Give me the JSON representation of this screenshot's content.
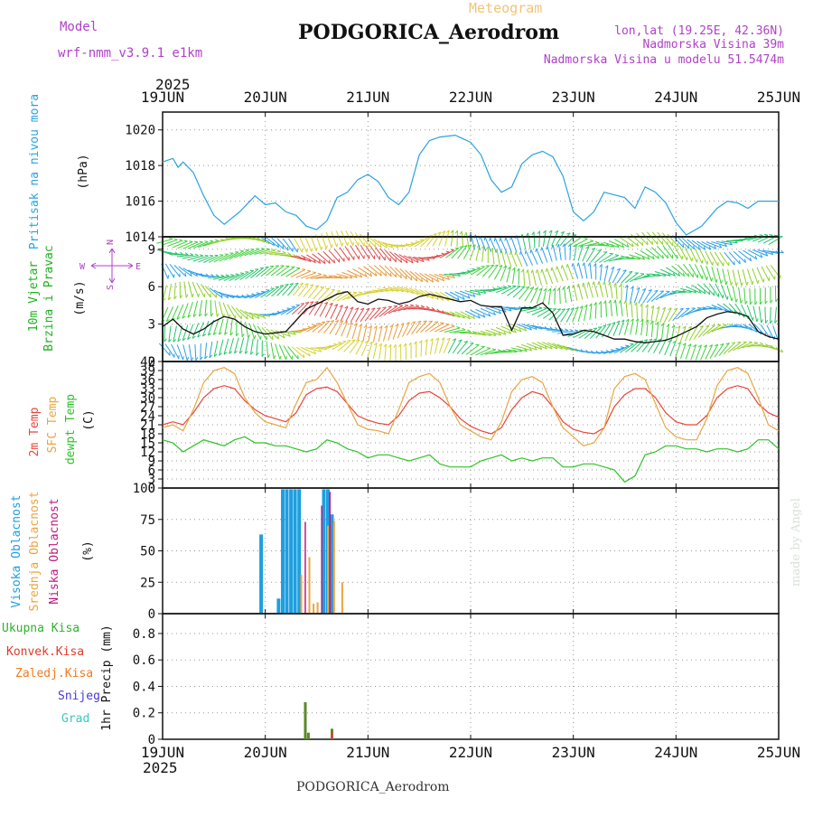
{
  "header": {
    "model_label": "Model",
    "model_name": "wrf-nmm_v3.9.1 e1km",
    "title": "PODGORICA_Aerodrom",
    "meteogram": "Meteogram",
    "coords": "lon,lat (19.25E, 42.36N)",
    "altitude": "Nadmorska Visina 39m",
    "model_altitude": "Nadmorska Visina u modelu 51.5474m",
    "footer_title": "PODGORICA_Aerodrom",
    "watermark": "made by Angel"
  },
  "colors": {
    "pressure": "#29a3e0",
    "temp2m": "#e8463a",
    "sfc_temp": "#e8a640",
    "dewpoint": "#2ec227",
    "high_cloud": "#1e9fe0",
    "mid_cloud": "#e8a640",
    "low_cloud": "#c01880",
    "total_precip": "#2db22a",
    "convective_precip": "#e03a2a",
    "freezing_precip": "#f07a20",
    "snow": "#4a3ad8",
    "hail": "#3ac8c0",
    "wind_label": "#22b022",
    "compass": "#b040c8"
  },
  "x_axis": {
    "year_top": "2025",
    "year_bottom": "2025",
    "dates": [
      "19JUN",
      "20JUN",
      "21JUN",
      "22JUN",
      "23JUN",
      "24JUN",
      "25JUN"
    ]
  },
  "panels": {
    "pressure": {
      "label": "Pritisak na nivou mora",
      "unit": "(hPa)",
      "ticks": [
        "1014",
        "1016",
        "1018",
        "1020"
      ]
    },
    "wind": {
      "label1": "10m Vjetar",
      "label2": "Brzina i Pravac",
      "unit": "(m/s)",
      "ticks": [
        "0",
        "3",
        "6",
        "9"
      ],
      "compass": {
        "n": "N",
        "s": "S",
        "w": "W",
        "e": "E"
      }
    },
    "temperature": {
      "label_t2m": "2m Temp",
      "label_sfc": "SFC Temp",
      "label_dew": "dewpt Temp",
      "unit": "(C)",
      "ticks": [
        "0",
        "3",
        "6",
        "9",
        "12",
        "15",
        "18",
        "21",
        "24",
        "27",
        "30",
        "33",
        "36",
        "39",
        "42"
      ]
    },
    "cloud": {
      "label_high": "Visoka Oblacnost",
      "label_mid": "Srednja Oblacnost",
      "label_low": "Niska Oblacnost",
      "unit": "(%)",
      "ticks": [
        "0",
        "25",
        "50",
        "75",
        "100"
      ]
    },
    "precip": {
      "unit": "1hr Precip (mm)",
      "ticks": [
        "0",
        "0.2",
        "0.4",
        "0.6",
        "0.8"
      ],
      "legend": [
        "Ukupna Kisa",
        "Konvek.Kisa",
        "Zaledj.Kisa",
        "Snijeg",
        "Grad"
      ]
    }
  },
  "chart_data": [
    {
      "type": "line",
      "title": "Pritisak na nivou mora",
      "ylabel": "(hPa)",
      "xlim": [
        0,
        6
      ],
      "ylim": [
        1014,
        1021
      ],
      "series": [
        {
          "name": "Pritisak na nivou mora",
          "x": [
            0,
            0.1,
            0.15,
            0.2,
            0.3,
            0.4,
            0.5,
            0.6,
            0.75,
            0.9,
            1.0,
            1.1,
            1.2,
            1.3,
            1.4,
            1.5,
            1.6,
            1.7,
            1.8,
            1.9,
            2.0,
            2.1,
            2.2,
            2.3,
            2.4,
            2.5,
            2.6,
            2.7,
            2.85,
            3.0,
            3.1,
            3.2,
            3.3,
            3.4,
            3.5,
            3.6,
            3.7,
            3.8,
            3.9,
            4.0,
            4.1,
            4.2,
            4.3,
            4.5,
            4.6,
            4.7,
            4.8,
            4.9,
            5.0,
            5.1,
            5.25,
            5.4,
            5.5,
            5.6,
            5.7,
            5.8,
            5.9,
            6.0
          ],
          "y": [
            1018.2,
            1018.4,
            1017.9,
            1018.2,
            1017.6,
            1016.3,
            1015.2,
            1014.7,
            1015.4,
            1016.3,
            1015.8,
            1015.9,
            1015.4,
            1015.2,
            1014.6,
            1014.4,
            1014.9,
            1016.2,
            1016.5,
            1017.2,
            1017.5,
            1017.1,
            1016.2,
            1015.8,
            1016.5,
            1018.6,
            1019.4,
            1019.6,
            1019.7,
            1019.3,
            1018.6,
            1017.2,
            1016.5,
            1016.8,
            1018.1,
            1018.6,
            1018.8,
            1018.5,
            1017.4,
            1015.4,
            1014.9,
            1015.4,
            1016.5,
            1016.2,
            1015.6,
            1016.8,
            1016.5,
            1015.9,
            1014.8,
            1014.1,
            1014.6,
            1015.6,
            1016.0,
            1015.9,
            1015.6,
            1016.0,
            1016.0,
            1016.0
          ]
        }
      ]
    },
    {
      "type": "line",
      "title": "10m Vjetar Brzina i Pravac",
      "ylabel": "(m/s)",
      "xlim": [
        0,
        6
      ],
      "ylim": [
        0,
        10
      ],
      "series": [
        {
          "name": "10m Vjetar",
          "x": [
            0,
            0.1,
            0.2,
            0.3,
            0.4,
            0.5,
            0.6,
            0.7,
            0.8,
            0.9,
            1.0,
            1.1,
            1.2,
            1.3,
            1.4,
            1.5,
            1.6,
            1.7,
            1.8,
            1.9,
            2.0,
            2.1,
            2.2,
            2.3,
            2.4,
            2.5,
            2.6,
            2.7,
            2.8,
            2.9,
            3.0,
            3.1,
            3.2,
            3.3,
            3.4,
            3.5,
            3.6,
            3.7,
            3.8,
            3.9,
            4.0,
            4.1,
            4.2,
            4.3,
            4.4,
            4.5,
            4.6,
            4.7,
            4.8,
            4.9,
            5.0,
            5.1,
            5.2,
            5.3,
            5.4,
            5.5,
            5.6,
            5.7,
            5.8,
            5.9,
            6.0
          ],
          "y": [
            2.8,
            3.4,
            2.6,
            2.2,
            2.6,
            3.2,
            3.6,
            3.4,
            2.8,
            2.4,
            2.2,
            2.3,
            2.4,
            3.3,
            4.2,
            4.6,
            5.0,
            5.4,
            5.6,
            4.8,
            4.6,
            5.0,
            4.9,
            4.6,
            4.8,
            5.2,
            5.4,
            5.2,
            5.0,
            4.8,
            4.9,
            4.5,
            4.4,
            4.4,
            2.5,
            4.3,
            4.3,
            4.7,
            3.9,
            2.1,
            2.2,
            2.5,
            2.4,
            2.1,
            1.8,
            1.8,
            1.6,
            1.5,
            1.6,
            1.7,
            2.0,
            2.4,
            2.8,
            3.5,
            3.8,
            4.0,
            3.9,
            3.6,
            2.4,
            2.0,
            1.8
          ]
        }
      ]
    },
    {
      "type": "line",
      "title": "",
      "ylabel": "(C)",
      "xlim": [
        0,
        6
      ],
      "ylim": [
        0,
        42
      ],
      "series": [
        {
          "name": "2m Temp",
          "x": [
            0,
            0.1,
            0.2,
            0.3,
            0.4,
            0.5,
            0.6,
            0.7,
            0.8,
            0.9,
            1.0,
            1.1,
            1.2,
            1.3,
            1.4,
            1.5,
            1.6,
            1.7,
            1.8,
            1.9,
            2.0,
            2.1,
            2.2,
            2.3,
            2.4,
            2.5,
            2.6,
            2.7,
            2.8,
            2.9,
            3.0,
            3.1,
            3.2,
            3.3,
            3.4,
            3.5,
            3.6,
            3.7,
            3.8,
            3.9,
            4.0,
            4.1,
            4.2,
            4.3,
            4.4,
            4.5,
            4.6,
            4.7,
            4.8,
            4.9,
            5.0,
            5.1,
            5.2,
            5.3,
            5.4,
            5.5,
            5.6,
            5.7,
            5.8,
            5.9,
            6.0
          ],
          "y": [
            21,
            22,
            21,
            25,
            30,
            33,
            34,
            33,
            29,
            26,
            24,
            23,
            22,
            25,
            31,
            33,
            33.5,
            32,
            28,
            24,
            22.5,
            21.5,
            21,
            24,
            29,
            31.5,
            32,
            30,
            27,
            23,
            20.5,
            19,
            18,
            20,
            26,
            30,
            32,
            31,
            27,
            22,
            19.5,
            18.5,
            18,
            20,
            27,
            31,
            33,
            33,
            30,
            25,
            22,
            21,
            21,
            24,
            30,
            33,
            34,
            33,
            28,
            25,
            23.5
          ]
        },
        {
          "name": "SFC Temp",
          "x": [
            0,
            0.1,
            0.2,
            0.3,
            0.4,
            0.5,
            0.6,
            0.7,
            0.8,
            0.9,
            1.0,
            1.1,
            1.2,
            1.3,
            1.4,
            1.5,
            1.6,
            1.7,
            1.8,
            1.9,
            2.0,
            2.1,
            2.2,
            2.3,
            2.4,
            2.5,
            2.6,
            2.7,
            2.8,
            2.9,
            3.0,
            3.1,
            3.2,
            3.3,
            3.4,
            3.5,
            3.6,
            3.7,
            3.8,
            3.9,
            4.0,
            4.1,
            4.2,
            4.3,
            4.4,
            4.5,
            4.6,
            4.7,
            4.8,
            4.9,
            5.0,
            5.1,
            5.2,
            5.3,
            5.4,
            5.5,
            5.6,
            5.7,
            5.8,
            5.9,
            6.0
          ],
          "y": [
            20,
            21,
            19,
            26,
            35,
            39,
            40,
            38,
            30,
            25,
            22,
            21,
            20,
            28,
            35,
            36,
            40,
            35,
            28,
            21,
            19.5,
            19,
            18,
            26,
            35,
            37,
            38,
            35,
            27,
            21,
            19,
            17,
            16,
            22,
            32,
            36,
            37,
            35,
            27,
            20,
            17,
            14,
            15,
            20,
            33,
            37,
            38,
            36,
            28,
            20,
            17,
            16,
            16,
            23,
            34,
            39,
            40,
            38,
            30,
            21,
            19
          ]
        },
        {
          "name": "dewpt Temp",
          "x": [
            0,
            0.1,
            0.2,
            0.3,
            0.4,
            0.5,
            0.6,
            0.7,
            0.8,
            0.9,
            1.0,
            1.1,
            1.2,
            1.3,
            1.4,
            1.5,
            1.6,
            1.7,
            1.8,
            1.9,
            2.0,
            2.1,
            2.2,
            2.3,
            2.4,
            2.5,
            2.6,
            2.7,
            2.8,
            2.9,
            3.0,
            3.1,
            3.2,
            3.3,
            3.4,
            3.5,
            3.6,
            3.7,
            3.8,
            3.9,
            4.0,
            4.1,
            4.2,
            4.3,
            4.4,
            4.5,
            4.6,
            4.7,
            4.8,
            4.9,
            5.0,
            5.1,
            5.2,
            5.3,
            5.4,
            5.5,
            5.6,
            5.7,
            5.8,
            5.9,
            6.0
          ],
          "y": [
            16,
            15,
            12,
            14,
            16,
            15,
            14,
            16,
            17,
            15,
            15,
            14,
            14,
            13,
            12,
            13,
            16,
            15,
            13,
            12,
            10,
            11,
            11,
            10,
            9,
            10,
            11,
            8,
            7,
            7,
            7,
            9,
            10,
            11,
            9,
            10,
            9,
            10,
            10,
            7,
            7,
            8,
            8,
            7,
            6,
            2,
            4,
            11,
            12,
            14,
            14,
            13,
            13,
            12,
            13,
            13,
            12,
            13,
            16,
            16,
            13
          ]
        }
      ]
    },
    {
      "type": "bar",
      "title": "",
      "ylabel": "(%)",
      "xlim": [
        0,
        6
      ],
      "ylim": [
        0,
        100
      ],
      "series": [
        {
          "name": "Visoka Oblacnost",
          "x": [
            0.96,
            1.13,
            1.17,
            1.21,
            1.25,
            1.29,
            1.33,
            1.57,
            1.61,
            1.65
          ],
          "values": [
            63,
            12,
            99,
            99,
            99,
            99,
            99,
            99,
            99,
            79
          ]
        },
        {
          "name": "Srednja Oblacnost",
          "x": [
            1.35,
            1.43,
            1.47,
            1.51,
            1.61,
            1.67,
            1.75
          ],
          "values": [
            31,
            45,
            8,
            9,
            70,
            74,
            25
          ]
        },
        {
          "name": "Niska Oblacnost",
          "x": [
            1.39,
            1.55,
            1.63
          ],
          "values": [
            73,
            86,
            97
          ]
        }
      ]
    },
    {
      "type": "bar",
      "title": "",
      "ylabel": "1hr Precip (mm)",
      "xlim": [
        0,
        6
      ],
      "ylim": [
        0,
        0.95
      ],
      "series": [
        {
          "name": "Ukupna Kisa",
          "x": [
            1.39,
            1.42,
            1.65
          ],
          "values": [
            0.28,
            0.05,
            0.08
          ]
        },
        {
          "name": "Konvek.Kisa",
          "x": [
            1.65
          ],
          "values": [
            0.06
          ]
        }
      ]
    }
  ]
}
